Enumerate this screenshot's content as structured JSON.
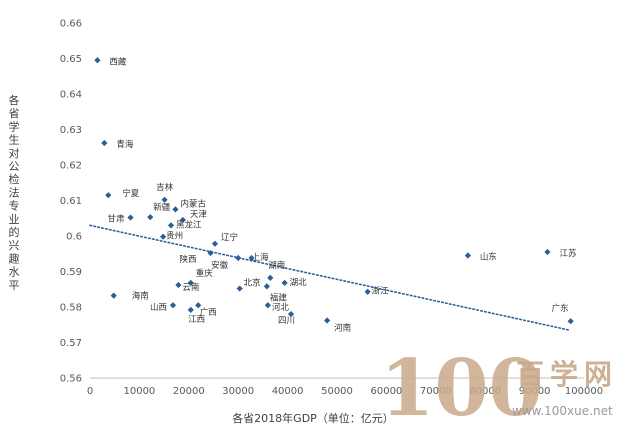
{
  "chart_data": {
    "type": "scatter",
    "xlabel": "各省2018年GDP（单位：亿元）",
    "ylabel": "各省学生对公检法专业的兴趣水平",
    "xlim": [
      0,
      100000
    ],
    "ylim": [
      0.56,
      0.66
    ],
    "xticks": [
      "0",
      "10000",
      "20000",
      "30000",
      "40000",
      "50000",
      "60000",
      "70000",
      "80000",
      "90000",
      "100000"
    ],
    "yticks": [
      "0.56",
      "0.57",
      "0.58",
      "0.59",
      "0.6",
      "0.61",
      "0.62",
      "0.63",
      "0.64",
      "0.65",
      "0.66"
    ],
    "marker_color": "#2e5d9c",
    "trendline": {
      "style": "dotted",
      "from": [
        0,
        0.603
      ],
      "to": [
        97000,
        0.5735
      ]
    },
    "points": [
      {
        "name": "西藏",
        "x": 1500,
        "y": 0.6495
      },
      {
        "name": "青海",
        "x": 2900,
        "y": 0.6262
      },
      {
        "name": "宁夏",
        "x": 3700,
        "y": 0.6115
      },
      {
        "name": "海南",
        "x": 4800,
        "y": 0.5832
      },
      {
        "name": "甘肃",
        "x": 8200,
        "y": 0.6052
      },
      {
        "name": "新疆",
        "x": 12200,
        "y": 0.6053
      },
      {
        "name": "吉林",
        "x": 15100,
        "y": 0.6102
      },
      {
        "name": "贵州",
        "x": 14800,
        "y": 0.5998
      },
      {
        "name": "山西",
        "x": 16800,
        "y": 0.5805
      },
      {
        "name": "黑龙江",
        "x": 16400,
        "y": 0.603
      },
      {
        "name": "内蒙古",
        "x": 17300,
        "y": 0.6075
      },
      {
        "name": "天津",
        "x": 18800,
        "y": 0.6045
      },
      {
        "name": "云南",
        "x": 17900,
        "y": 0.5862
      },
      {
        "name": "广西",
        "x": 20400,
        "y": 0.5792
      },
      {
        "name": "重庆",
        "x": 20400,
        "y": 0.5868
      },
      {
        "name": "陕西",
        "x": 24400,
        "y": 0.5952
      },
      {
        "name": "江西",
        "x": 21900,
        "y": 0.5805
      },
      {
        "name": "辽宁",
        "x": 25300,
        "y": 0.5978
      },
      {
        "name": "安徽",
        "x": 30000,
        "y": 0.5938
      },
      {
        "name": "北京",
        "x": 30300,
        "y": 0.5852
      },
      {
        "name": "上海",
        "x": 32700,
        "y": 0.5938
      },
      {
        "name": "河北",
        "x": 36000,
        "y": 0.5805
      },
      {
        "name": "福建",
        "x": 35800,
        "y": 0.5858
      },
      {
        "name": "湖南",
        "x": 36500,
        "y": 0.5882
      },
      {
        "name": "湖北",
        "x": 39400,
        "y": 0.5868
      },
      {
        "name": "四川",
        "x": 40700,
        "y": 0.578
      },
      {
        "name": "河南",
        "x": 48000,
        "y": 0.5762
      },
      {
        "name": "浙江",
        "x": 56200,
        "y": 0.5843
      },
      {
        "name": "山东",
        "x": 76500,
        "y": 0.5945
      },
      {
        "name": "江苏",
        "x": 92600,
        "y": 0.5955
      },
      {
        "name": "广东",
        "x": 97300,
        "y": 0.576
      }
    ]
  },
  "watermark": {
    "digits": "100",
    "text": "百学网",
    "url": "www.100xue.net",
    "color": "#c9a989"
  }
}
